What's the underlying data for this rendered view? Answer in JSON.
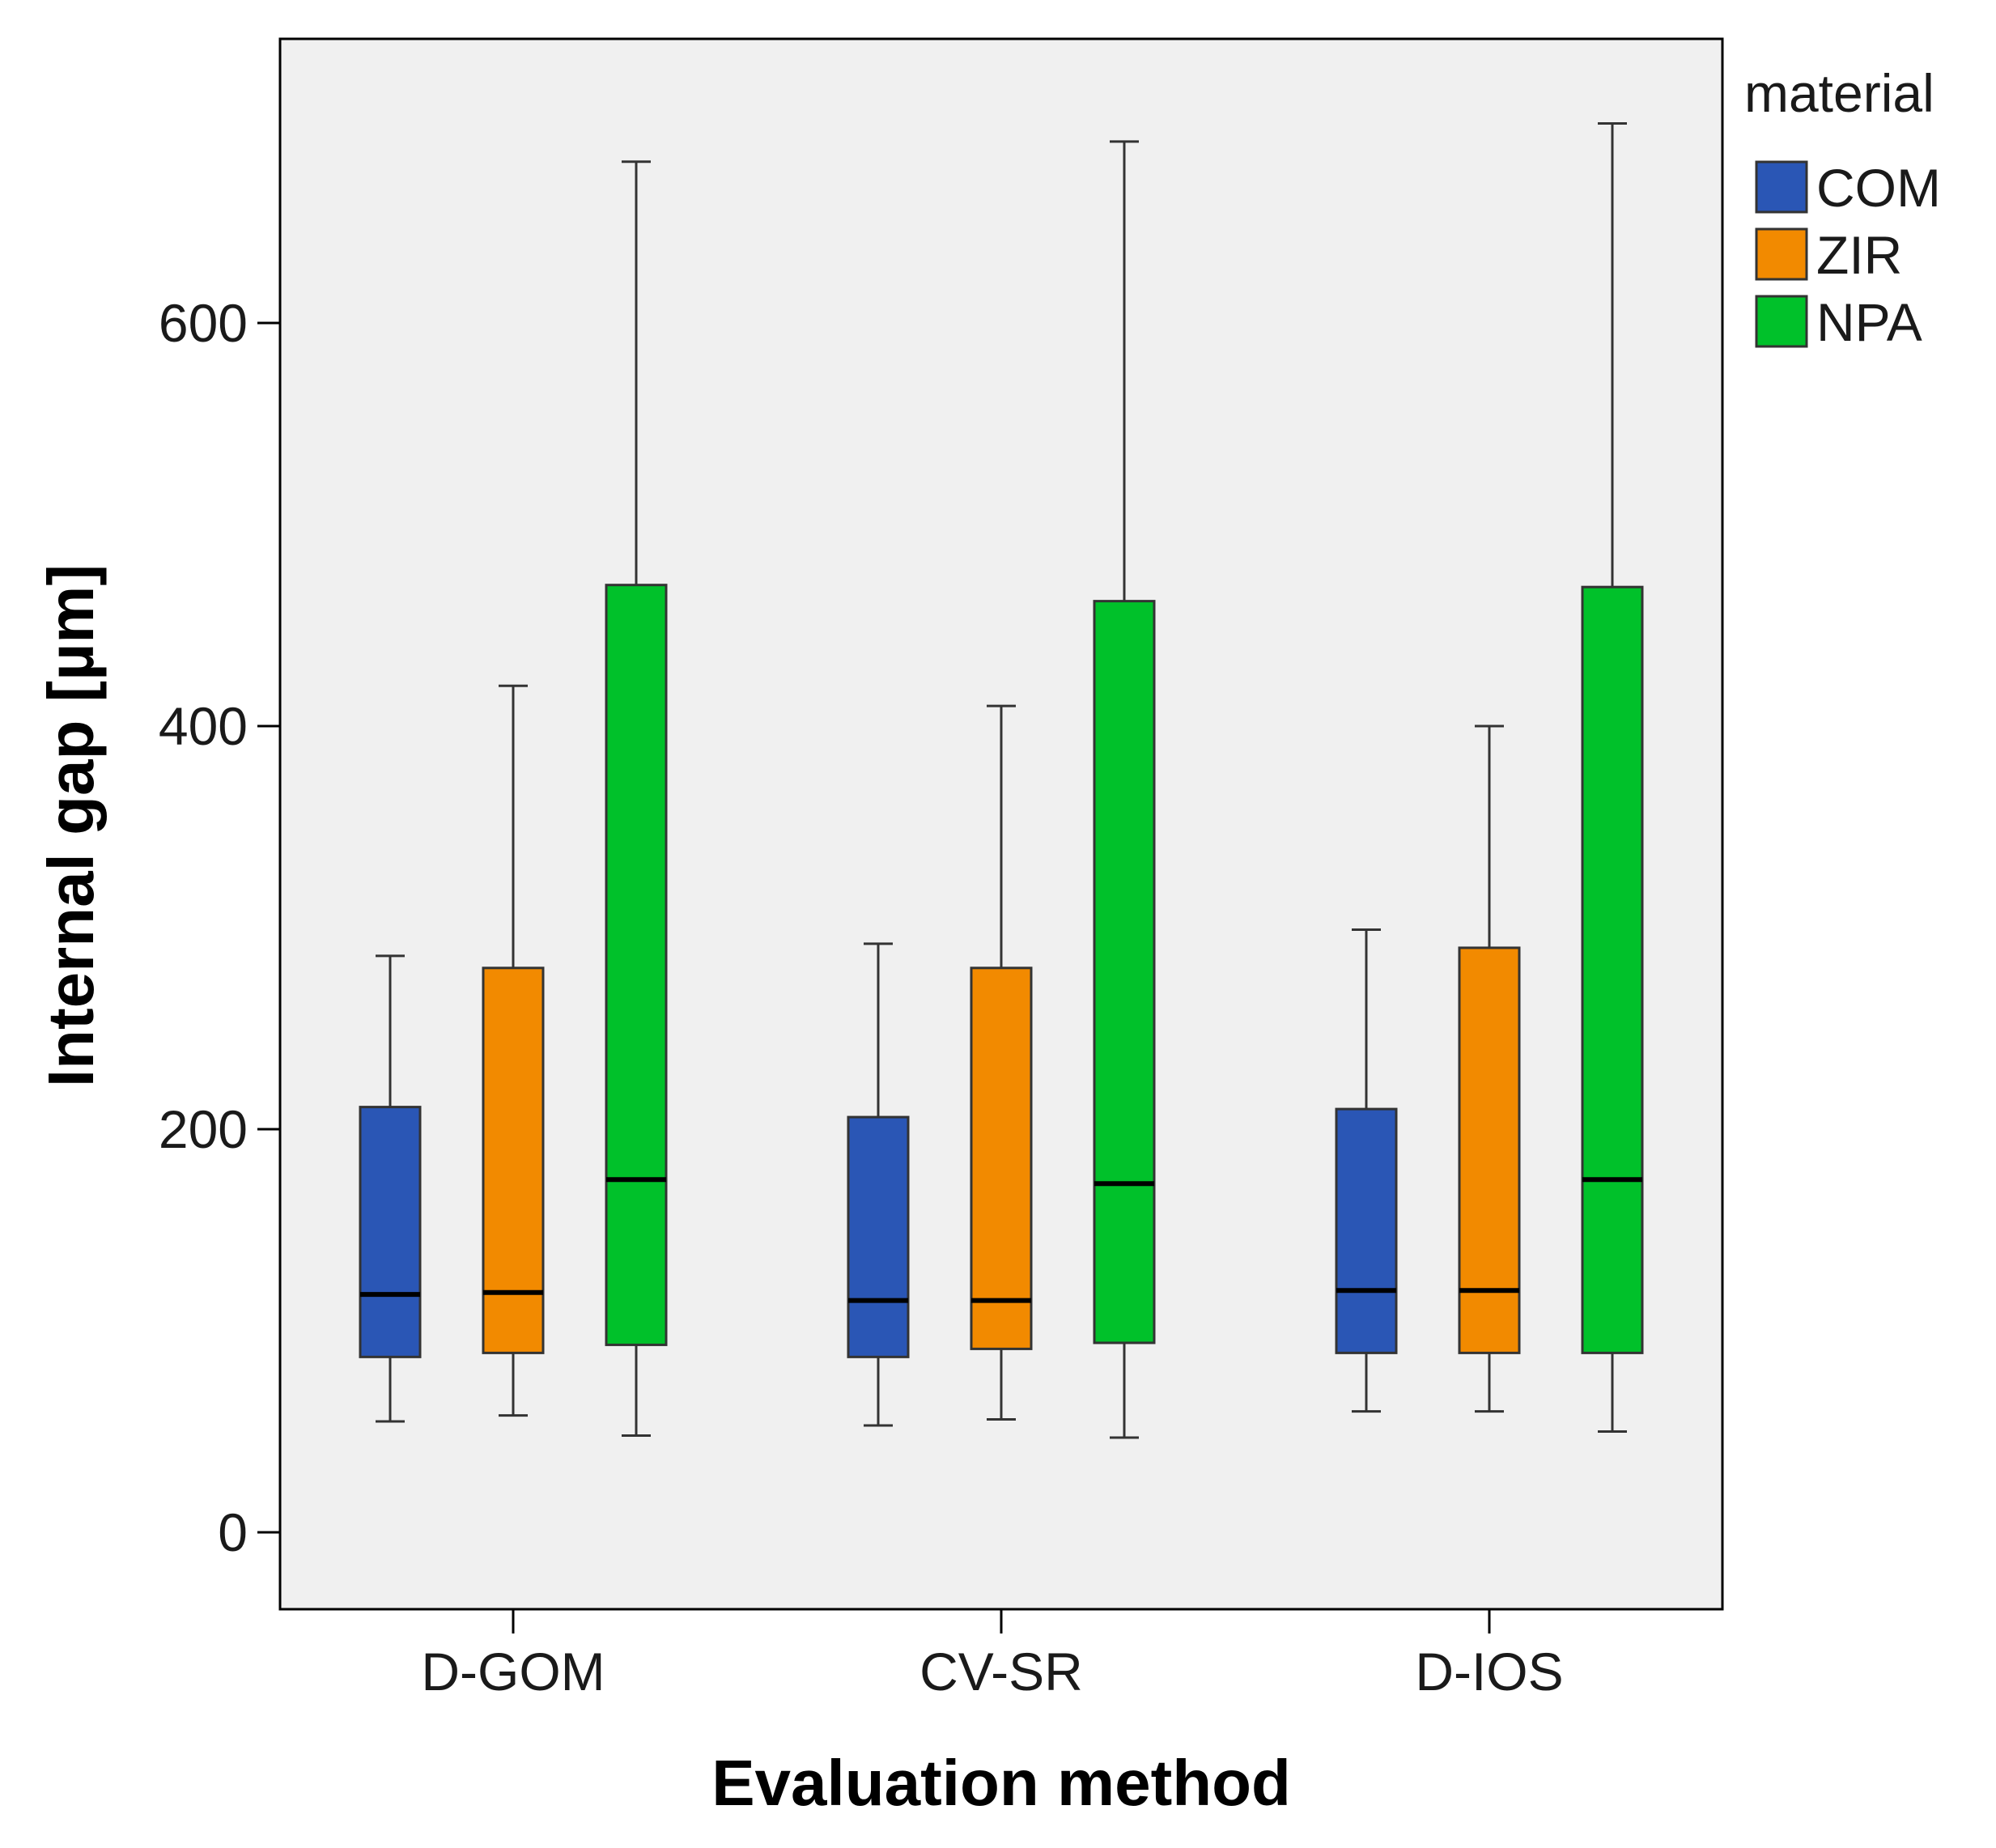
{
  "chart_data": {
    "type": "boxplot",
    "title": "",
    "xlabel": "Evaluation method",
    "ylabel": "Internal gap [µm]",
    "ylim": [
      -40,
      740
    ],
    "yticks": [
      0,
      200,
      400,
      600
    ],
    "categories": [
      "D-GOM",
      "CV-SR",
      "D-IOS"
    ],
    "legend": {
      "title": "material",
      "placement": "top-right-outside"
    },
    "series": [
      {
        "name": "COM",
        "color": "#2a56b5",
        "boxes": [
          {
            "min": 55,
            "q1": 87,
            "median": 118,
            "q3": 211,
            "max": 286
          },
          {
            "min": 53,
            "q1": 87,
            "median": 115,
            "q3": 206,
            "max": 292
          },
          {
            "min": 60,
            "q1": 89,
            "median": 120,
            "q3": 210,
            "max": 299
          }
        ]
      },
      {
        "name": "ZIR",
        "color": "#f28a00",
        "boxes": [
          {
            "min": 58,
            "q1": 89,
            "median": 119,
            "q3": 280,
            "max": 420
          },
          {
            "min": 56,
            "q1": 91,
            "median": 115,
            "q3": 280,
            "max": 410
          },
          {
            "min": 60,
            "q1": 89,
            "median": 120,
            "q3": 290,
            "max": 400
          }
        ]
      },
      {
        "name": "NPA",
        "color": "#00c12a",
        "boxes": [
          {
            "min": 48,
            "q1": 93,
            "median": 175,
            "q3": 470,
            "max": 680
          },
          {
            "min": 47,
            "q1": 94,
            "median": 173,
            "q3": 462,
            "max": 690
          },
          {
            "min": 50,
            "q1": 89,
            "median": 175,
            "q3": 469,
            "max": 699
          }
        ]
      }
    ]
  }
}
